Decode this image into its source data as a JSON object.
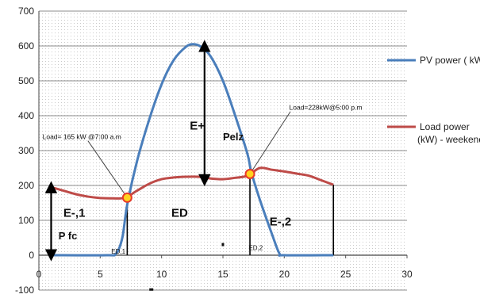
{
  "chart_data": {
    "type": "line",
    "xlim": [
      0,
      30
    ],
    "ylim": [
      -100,
      700
    ],
    "x_ticks": [
      "0",
      "5",
      "10",
      "15",
      "20",
      "25",
      "30"
    ],
    "y_ticks": [
      "-100",
      "0",
      "100",
      "200",
      "300",
      "400",
      "500",
      "600",
      "700"
    ],
    "grid": true,
    "legend_position": "right",
    "series": [
      {
        "name": "PV power ( kW)",
        "legend_lines": [
          "PV power ( kW)"
        ],
        "color": "#4a7ebb",
        "points": [
          [
            1,
            0
          ],
          [
            5.5,
            0
          ],
          [
            6.3,
            5
          ],
          [
            6.8,
            50
          ],
          [
            7.2,
            145
          ],
          [
            8,
            270
          ],
          [
            9,
            390
          ],
          [
            10,
            490
          ],
          [
            11,
            560
          ],
          [
            12,
            598
          ],
          [
            12.6,
            605
          ],
          [
            13.2,
            598
          ],
          [
            14,
            570
          ],
          [
            15,
            500
          ],
          [
            16,
            400
          ],
          [
            17,
            290
          ],
          [
            17.3,
            240
          ],
          [
            18,
            160
          ],
          [
            19,
            60
          ],
          [
            19.6,
            5
          ],
          [
            20,
            0
          ],
          [
            24,
            0
          ]
        ]
      },
      {
        "name": "Load power (kW) - weekend",
        "legend_lines": [
          "Load power",
          "(kW) - weekend"
        ],
        "color": "#be4b48",
        "points": [
          [
            1,
            195
          ],
          [
            2,
            185
          ],
          [
            3,
            175
          ],
          [
            4,
            168
          ],
          [
            5,
            164
          ],
          [
            6,
            163
          ],
          [
            7,
            165
          ],
          [
            8,
            185
          ],
          [
            9,
            205
          ],
          [
            10,
            218
          ],
          [
            11,
            223
          ],
          [
            12,
            225
          ],
          [
            13,
            225
          ],
          [
            14,
            220
          ],
          [
            15,
            218
          ],
          [
            16,
            222
          ],
          [
            17,
            228
          ],
          [
            18,
            250
          ],
          [
            19,
            245
          ],
          [
            20,
            240
          ],
          [
            21,
            234
          ],
          [
            22,
            228
          ],
          [
            23,
            215
          ],
          [
            24,
            202
          ]
        ]
      }
    ],
    "markers": [
      {
        "x": 7.2,
        "y": 165
      },
      {
        "x": 17.2,
        "y": 233
      }
    ],
    "annotations": {
      "e_plus": "E+",
      "pelz": "Pelz",
      "e_minus_1": "E-,1",
      "p_fc": "P fc",
      "ed": "ED",
      "e_minus_2": "E-,2",
      "ed1": "ED,1",
      "ed2": "ED,2",
      "load_morning": "Load= 165 kW @7:00 a.m",
      "load_evening": "Load=228kW@5:00 p.m"
    }
  }
}
